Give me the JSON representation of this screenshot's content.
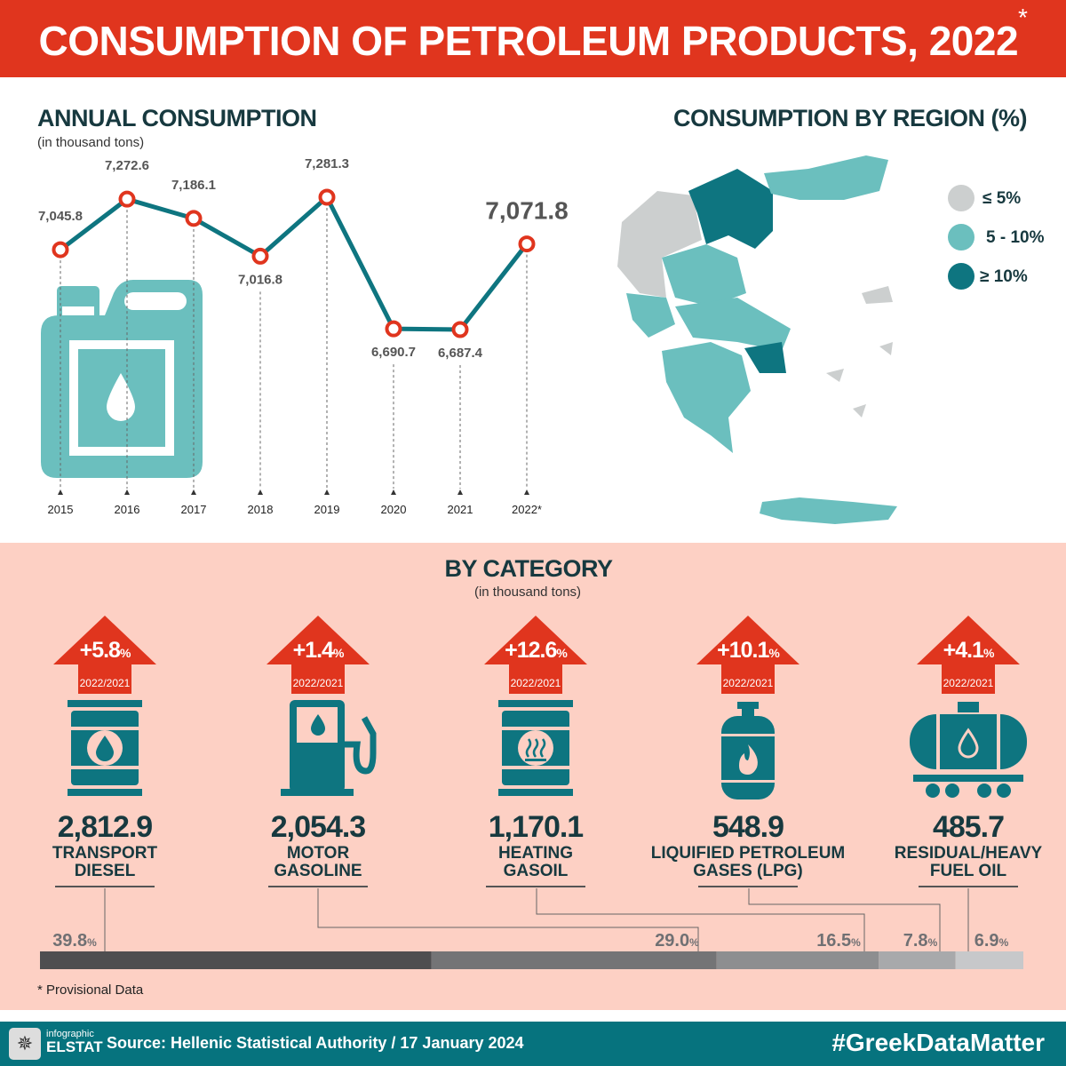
{
  "header": {
    "title": "CONSUMPTION OF PETROLEUM PRODUCTS, 2022",
    "asterisk": "*"
  },
  "annual": {
    "title": "ANNUAL CONSUMPTION",
    "subtitle": "(in thousand tons)"
  },
  "region": {
    "title": "CONSUMPTION BY REGION (%)",
    "legend": [
      {
        "label": "≤ 5%",
        "color": "#cccfcf"
      },
      {
        "label": "5 - 10%",
        "color": "#6bbfbe"
      },
      {
        "label": "≥ 10%",
        "color": "#0e7580"
      }
    ]
  },
  "chart_data": {
    "type": "line",
    "title": "ANNUAL CONSUMPTION",
    "ylabel": "in thousand tons",
    "categories": [
      "2015",
      "2016",
      "2017",
      "2018",
      "2019",
      "2020",
      "2021",
      "2022*"
    ],
    "values": [
      7045.8,
      7272.6,
      7186.1,
      7016.8,
      7281.3,
      6690.7,
      6687.4,
      7071.8
    ],
    "labels": [
      "7,045.8",
      "7,272.6",
      "7,186.1",
      "7,016.8",
      "7,281.3",
      "6,690.7",
      "6,687.4",
      "7,071.8"
    ]
  },
  "category": {
    "title": "BY CATEGORY",
    "subtitle": "(in thousand tons)",
    "period": "2022/2021",
    "items": [
      {
        "change": "+5.8",
        "value": "2,812.9",
        "line1": "TRANSPORT",
        "line2": "DIESEL",
        "share": 39.8,
        "share_label": "39.8"
      },
      {
        "change": "+1.4",
        "value": "2,054.3",
        "line1": "MOTOR",
        "line2": "GASOLINE",
        "share": 29.0,
        "share_label": "29.0"
      },
      {
        "change": "+12.6",
        "value": "1,170.1",
        "line1": "HEATING",
        "line2": "GASOIL",
        "share": 16.5,
        "share_label": "16.5"
      },
      {
        "change": "+10.1",
        "value": "548.9",
        "line1": "LIQUIFIED PETROLEUM",
        "line2": "GASES (LPG)",
        "share": 7.8,
        "share_label": "7.8"
      },
      {
        "change": "+4.1",
        "value": "485.7",
        "line1": "RESIDUAL/HEAVY",
        "line2": "FUEL OIL",
        "share": 6.9,
        "share_label": "6.9"
      }
    ],
    "pct": "%"
  },
  "note": "* Provisional Data",
  "footer": {
    "logo_top": "infographic",
    "logo_bottom": "ELSTAT",
    "source": "Source: Hellenic Statistical Authority / 17 January 2024",
    "hashtag": "#GreekDataMatter"
  }
}
